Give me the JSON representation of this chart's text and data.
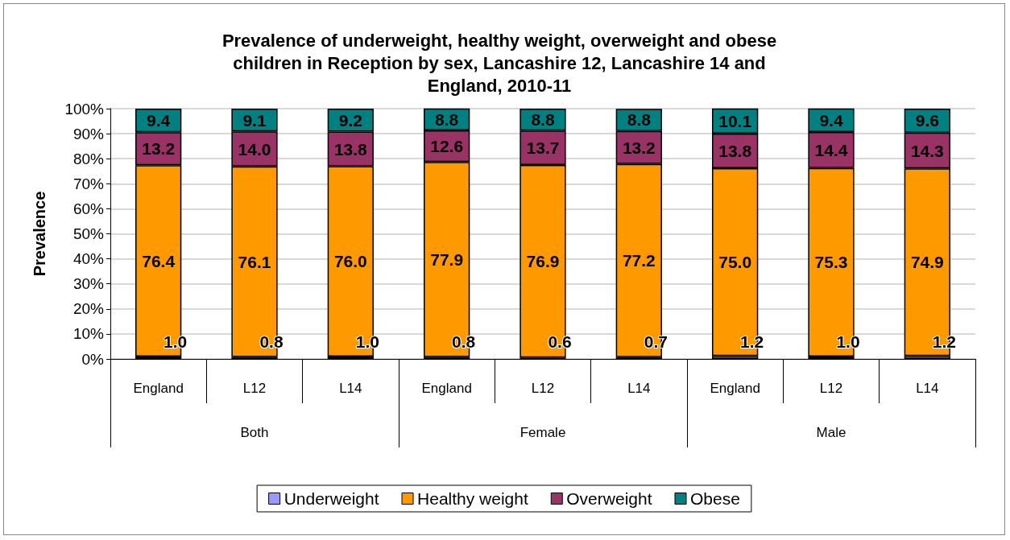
{
  "chart_data": {
    "type": "bar",
    "title": "Prevalence of underweight, healthy weight, overweight and obese\nchildren in Reception by sex, Lancashire 12, Lancashire 14 and\nEngland, 2010-11",
    "ylabel": "Prevalence",
    "categories": [
      "England",
      "L12",
      "L14",
      "England",
      "L12",
      "L14",
      "England",
      "L12",
      "L14"
    ],
    "annotations": [
      "Both",
      "Female",
      "Male"
    ],
    "stacked": true,
    "series": [
      {
        "name": "Underweight",
        "color": "#9999ff",
        "values": [
          1.0,
          0.8,
          1.0,
          0.8,
          0.6,
          0.7,
          1.2,
          1.0,
          1.2
        ],
        "value_labels": [
          "1.0",
          "0.8",
          "1.0",
          "0.8",
          "0.6",
          "0.7",
          "1.2",
          "1.0",
          "1.2"
        ]
      },
      {
        "name": "Healthy weight",
        "color": "#ff9900",
        "values": [
          76.4,
          76.1,
          76.0,
          77.9,
          76.9,
          77.2,
          75.0,
          75.3,
          74.9
        ],
        "value_labels": [
          "76.4",
          "76.1",
          "76.0",
          "77.9",
          "76.9",
          "77.2",
          "75.0",
          "75.3",
          "74.9"
        ]
      },
      {
        "name": "Overweight",
        "color": "#993366",
        "values": [
          13.2,
          14.0,
          13.8,
          12.6,
          13.7,
          13.2,
          13.8,
          14.4,
          14.3
        ],
        "value_labels": [
          "13.2",
          "14.0",
          "13.8",
          "12.6",
          "13.7",
          "13.2",
          "13.8",
          "14.4",
          "14.3"
        ]
      },
      {
        "name": "Obese",
        "color": "#008080",
        "values": [
          9.4,
          9.1,
          9.2,
          8.8,
          8.8,
          8.8,
          10.1,
          9.4,
          9.6
        ],
        "value_labels": [
          "9.4",
          "9.1",
          "9.2",
          "8.8",
          "8.8",
          "8.8",
          "10.1",
          "9.4",
          "9.6"
        ]
      }
    ],
    "ylim": [
      0,
      100
    ],
    "yticks": [
      {
        "value": 0,
        "label": "0%"
      },
      {
        "value": 10,
        "label": "10%"
      },
      {
        "value": 20,
        "label": "20%"
      },
      {
        "value": 30,
        "label": "30%"
      },
      {
        "value": 40,
        "label": "40%"
      },
      {
        "value": 50,
        "label": "50%"
      },
      {
        "value": 60,
        "label": "60%"
      },
      {
        "value": 70,
        "label": "70%"
      },
      {
        "value": 80,
        "label": "80%"
      },
      {
        "value": 90,
        "label": "90%"
      },
      {
        "value": 100,
        "label": "100%"
      }
    ],
    "grid": "y",
    "legend": "bottom"
  }
}
